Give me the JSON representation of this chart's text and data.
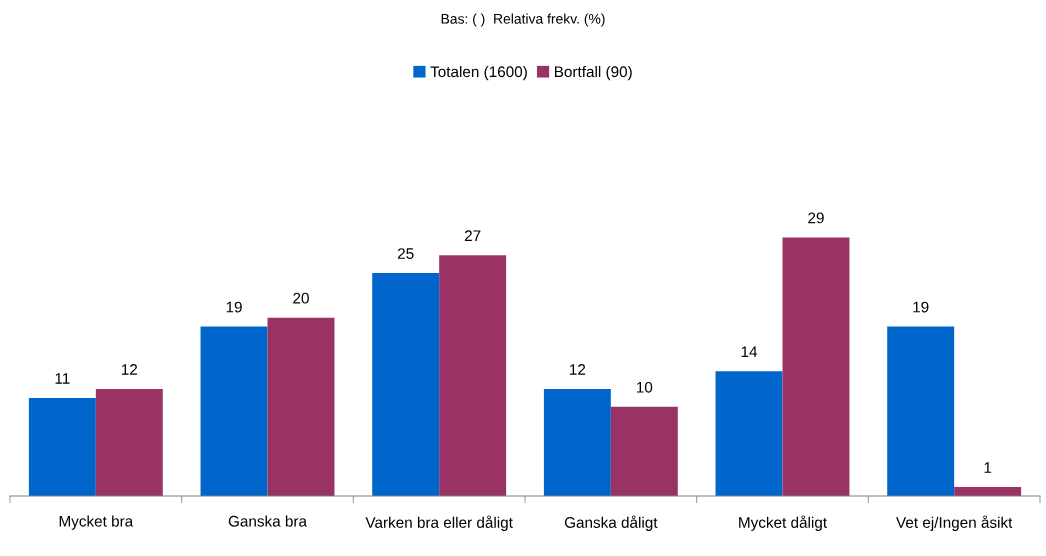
{
  "chart_data": {
    "type": "bar",
    "title": "Bas: ( )  Relativa frekv. (%)",
    "categories": [
      "Mycket bra",
      "Ganska bra",
      "Varken bra eller dåligt",
      "Ganska dåligt",
      "Mycket dåligt",
      "Vet ej/Ingen åsikt"
    ],
    "series": [
      {
        "name": "Totalen (1600)",
        "color": "#0066cc",
        "values": [
          11,
          19,
          25,
          12,
          14,
          19
        ]
      },
      {
        "name": "Bortfall (90)",
        "color": "#993366",
        "values": [
          12,
          20,
          27,
          10,
          29,
          1
        ]
      }
    ],
    "data_labels": true,
    "legend": "top",
    "grid": false
  }
}
